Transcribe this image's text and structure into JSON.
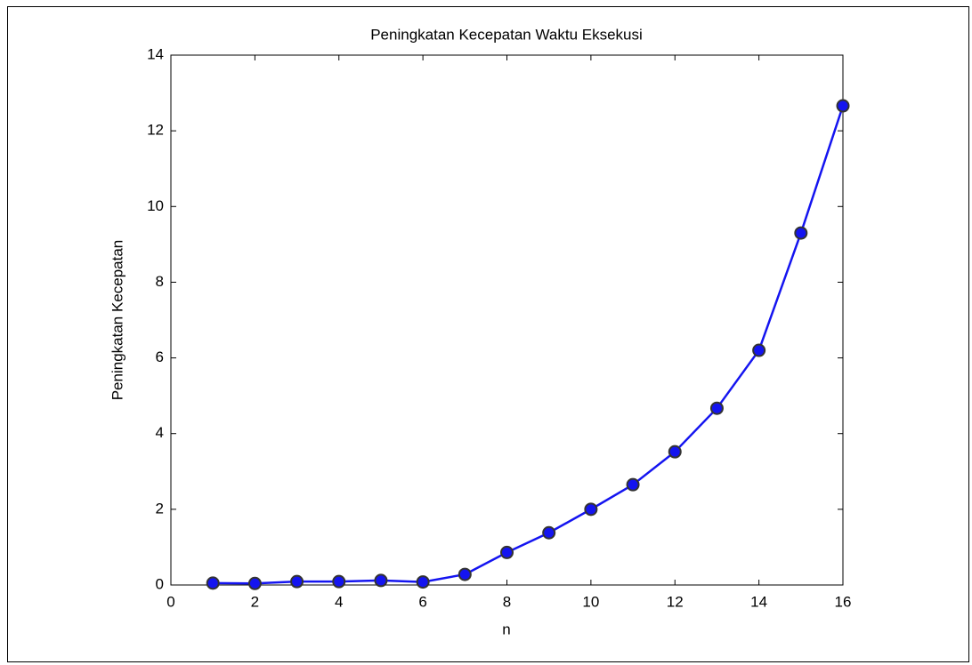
{
  "chart_data": {
    "type": "line",
    "title": "Peningkatan Kecepatan Waktu Eksekusi",
    "x_label": "n",
    "y_label": "Peningkatan Kecepatan",
    "x": [
      1,
      2,
      3,
      4,
      5,
      6,
      7,
      8,
      9,
      10,
      11,
      12,
      13,
      14,
      15,
      16
    ],
    "series": [
      {
        "color": "#1414f0",
        "values": [
          0.05,
          0.04,
          0.09,
          0.09,
          0.12,
          0.08,
          0.28,
          0.86,
          1.38,
          2.0,
          2.65,
          3.52,
          4.67,
          6.2,
          9.3,
          12.66
        ]
      }
    ],
    "xlim": [
      0,
      16
    ],
    "xticks": [
      0,
      2,
      4,
      6,
      8,
      10,
      12,
      14,
      16
    ],
    "ylim": [
      0,
      14
    ],
    "yticks": [
      0,
      2,
      4,
      6,
      8,
      10,
      12,
      14
    ],
    "grid": false
  }
}
